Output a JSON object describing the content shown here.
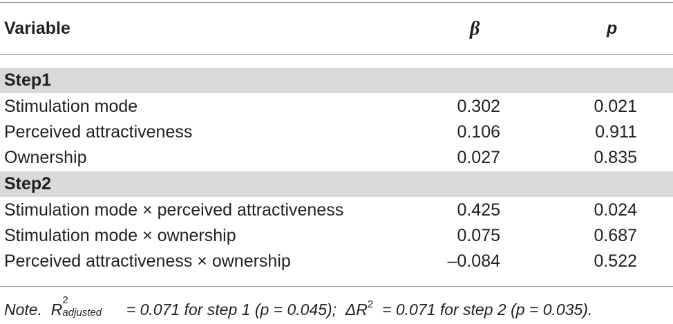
{
  "table": {
    "header": {
      "variable": "Variable",
      "beta": "β",
      "p": "p"
    },
    "sections": [
      {
        "title": "Step1",
        "rows": [
          {
            "variable": "Stimulation mode",
            "beta": "0.302",
            "p": "0.021"
          },
          {
            "variable": "Perceived attractiveness",
            "beta": "0.106",
            "p": "0.911"
          },
          {
            "variable": "Ownership",
            "beta": "0.027",
            "p": "0.835"
          }
        ]
      },
      {
        "title": "Step2",
        "rows": [
          {
            "variable": "Stimulation mode × perceived attractiveness",
            "beta": "0.425",
            "p": "0.024"
          },
          {
            "variable": "Stimulation mode × ownership",
            "beta": "0.075",
            "p": "0.687"
          },
          {
            "variable": "Perceived attractiveness × ownership",
            "beta": "–0.084",
            "p": "0.522"
          }
        ]
      }
    ]
  },
  "note": {
    "prefix": "Note.",
    "r_symbol": "R",
    "r_sup": "2",
    "r_sub": "adjusted",
    "part1": "= 0.071 for step 1 (p = 0.045);",
    "delta_symbol": "ΔR",
    "delta_sup": "2",
    "part2": "= 0.071 for step 2 (p = 0.035)."
  }
}
